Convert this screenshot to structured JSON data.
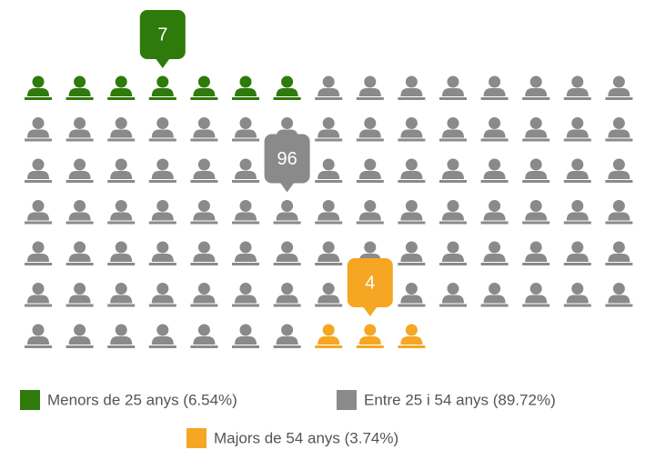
{
  "chart_data": {
    "type": "pictogram",
    "series": [
      {
        "name": "Menors de 25 anys (6.54%)",
        "color": "#2e7a0a",
        "values": 7,
        "icons": 7
      },
      {
        "name": "Entre 25 i 54 anys (89.72%)",
        "color": "#8a8a8a",
        "values": 96,
        "icons": 90
      },
      {
        "name": "Majors de 54 anys (3.74%)",
        "color": "#f5a623",
        "values": 4,
        "icons": 3
      }
    ]
  }
}
